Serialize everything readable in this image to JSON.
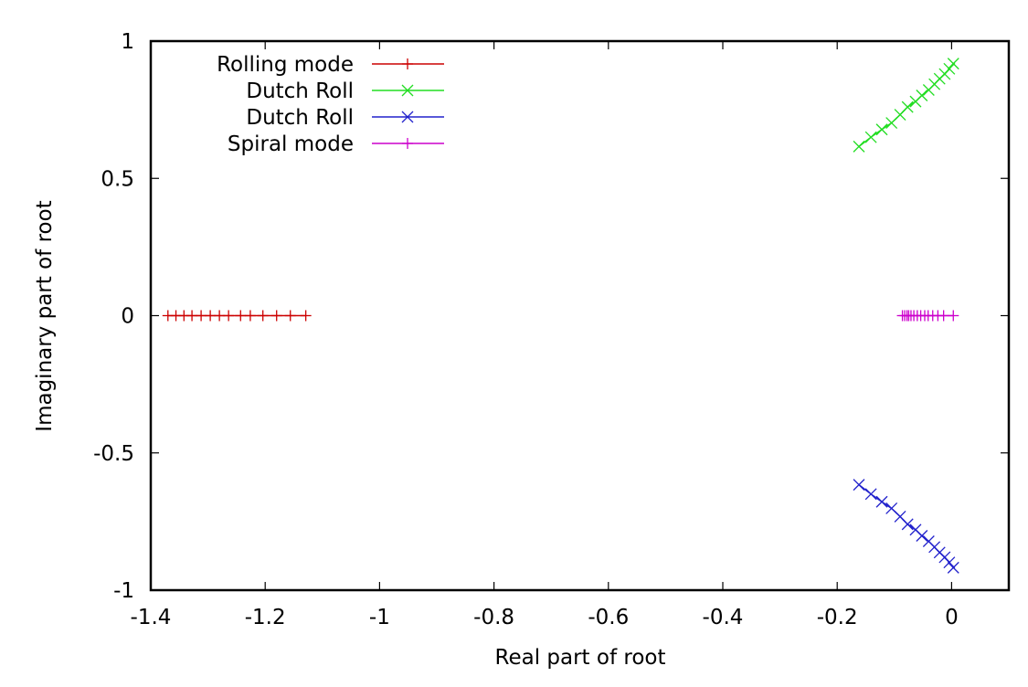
{
  "chart_data": {
    "type": "scatter",
    "title": "",
    "xlabel": "Real part of root",
    "ylabel": "Imaginary part of root",
    "xlim": [
      -1.4,
      0.1
    ],
    "ylim": [
      -1,
      1
    ],
    "xticks": [
      -1.4,
      -1.2,
      -1,
      -0.8,
      -0.6,
      -0.4,
      -0.2,
      0
    ],
    "xtick_labels": [
      "-1.4",
      "-1.2",
      "-1",
      "-0.8",
      "-0.6",
      "-0.4",
      "-0.2",
      "0"
    ],
    "yticks": [
      -1,
      -0.5,
      0,
      0.5,
      1
    ],
    "ytick_labels": [
      "-1",
      "-0.5",
      "0",
      "0.5",
      "1"
    ],
    "grid": false,
    "legend_position": "top-left",
    "series": [
      {
        "name": "Rolling mode",
        "color": "#cc0000",
        "marker": "plus",
        "x": [
          -1.37,
          -1.356,
          -1.342,
          -1.328,
          -1.312,
          -1.296,
          -1.28,
          -1.264,
          -1.243,
          -1.226,
          -1.204,
          -1.18,
          -1.156,
          -1.129
        ],
        "y": [
          0,
          0,
          0,
          0,
          0,
          0,
          0,
          0,
          0,
          0,
          0,
          0,
          0,
          0
        ]
      },
      {
        "name": "Dutch Roll",
        "color": "#22dd22",
        "marker": "cross",
        "x": [
          -0.162,
          -0.141,
          -0.122,
          -0.105,
          -0.09,
          -0.077,
          -0.063,
          -0.052,
          -0.04,
          -0.03,
          -0.021,
          -0.012,
          -0.004,
          0.003
        ],
        "y": [
          0.616,
          0.65,
          0.678,
          0.702,
          0.732,
          0.76,
          0.78,
          0.802,
          0.822,
          0.843,
          0.863,
          0.88,
          0.899,
          0.918
        ]
      },
      {
        "name": "Dutch Roll",
        "color": "#2222cc",
        "marker": "cross",
        "x": [
          -0.162,
          -0.141,
          -0.122,
          -0.105,
          -0.09,
          -0.077,
          -0.063,
          -0.052,
          -0.04,
          -0.03,
          -0.021,
          -0.012,
          -0.004,
          0.003
        ],
        "y": [
          -0.616,
          -0.65,
          -0.678,
          -0.702,
          -0.732,
          -0.76,
          -0.78,
          -0.802,
          -0.822,
          -0.843,
          -0.863,
          -0.88,
          -0.899,
          -0.918
        ]
      },
      {
        "name": "Spiral mode",
        "color": "#cc00cc",
        "marker": "plus",
        "x": [
          -0.086,
          -0.082,
          -0.078,
          -0.075,
          -0.071,
          -0.066,
          -0.06,
          -0.054,
          -0.047,
          -0.041,
          -0.033,
          -0.024,
          -0.014,
          0.003
        ],
        "y": [
          0,
          0,
          0,
          0,
          0,
          0,
          0,
          0,
          0,
          0,
          0,
          0,
          0,
          0
        ]
      }
    ]
  }
}
